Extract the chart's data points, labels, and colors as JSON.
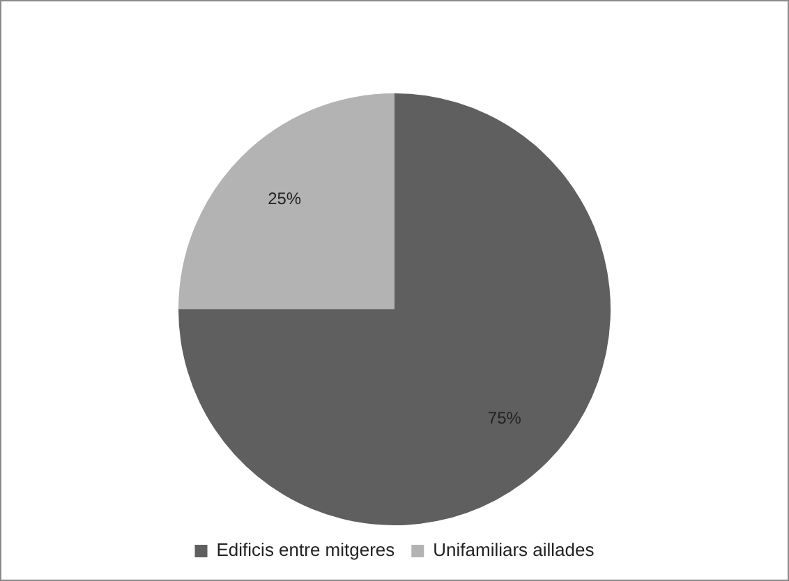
{
  "chart_data": {
    "type": "pie",
    "categories": [
      "Edificis entre mitgeres",
      "Unifamiliars aillades"
    ],
    "values": [
      75,
      25
    ],
    "colors": [
      "#5f5f5f",
      "#b3b3b3"
    ],
    "value_labels": [
      "75%",
      "25%"
    ],
    "legend": "bottom"
  }
}
